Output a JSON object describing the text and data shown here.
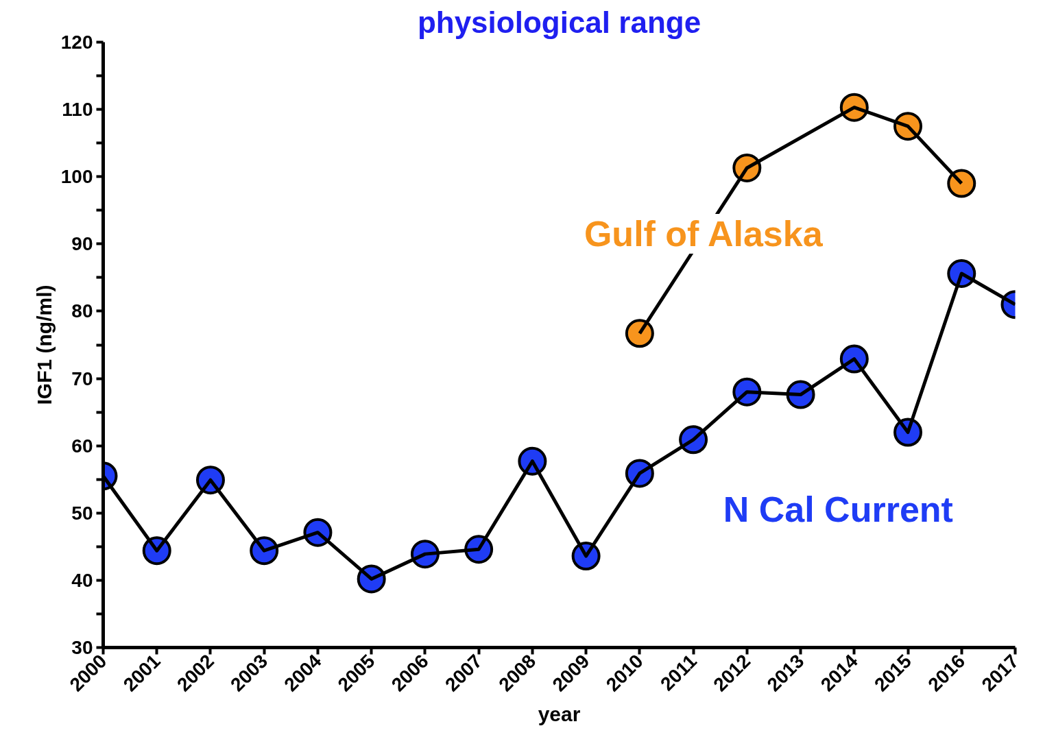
{
  "chart_data": {
    "type": "line",
    "title": "physiological range",
    "xlabel": "year",
    "ylabel": "IGF1 (ng/ml)",
    "x": [
      2000,
      2001,
      2002,
      2003,
      2004,
      2005,
      2006,
      2007,
      2008,
      2009,
      2010,
      2011,
      2012,
      2013,
      2014,
      2015,
      2016,
      2017
    ],
    "series": [
      {
        "name": "N Cal Current",
        "color": "#1f3cf5",
        "values": [
          55.5,
          44.4,
          54.9,
          44.4,
          47.1,
          40.2,
          43.9,
          44.6,
          57.7,
          43.6,
          55.9,
          60.9,
          68.0,
          67.6,
          72.9,
          62.0,
          85.6,
          81.0
        ]
      },
      {
        "name": "Gulf of Alaska",
        "color": "#f7941d",
        "x": [
          2010,
          2012,
          2014,
          2015,
          2016
        ],
        "values": [
          76.7,
          101.3,
          110.3,
          107.5,
          99.0
        ]
      }
    ],
    "xlim": [
      2000,
      2017
    ],
    "ylim": [
      30,
      120
    ],
    "xticks": [
      2000,
      2001,
      2002,
      2003,
      2004,
      2005,
      2006,
      2007,
      2008,
      2009,
      2010,
      2011,
      2012,
      2013,
      2014,
      2015,
      2016,
      2017
    ],
    "yticks": [
      30,
      {
        "value": 35,
        "label": null
      },
      40,
      {
        "value": 45,
        "label": null
      },
      50,
      {
        "value": 55,
        "label": null
      },
      60,
      {
        "value": 65,
        "label": null
      },
      70,
      {
        "value": 75,
        "label": null
      },
      80,
      {
        "value": 85,
        "label": null
      },
      90,
      {
        "value": 95,
        "label": null
      },
      100,
      {
        "value": 105,
        "label": null
      },
      110,
      {
        "value": 115,
        "label": null
      },
      120
    ],
    "grid": false,
    "marker": "circle",
    "line_style": "solid"
  }
}
